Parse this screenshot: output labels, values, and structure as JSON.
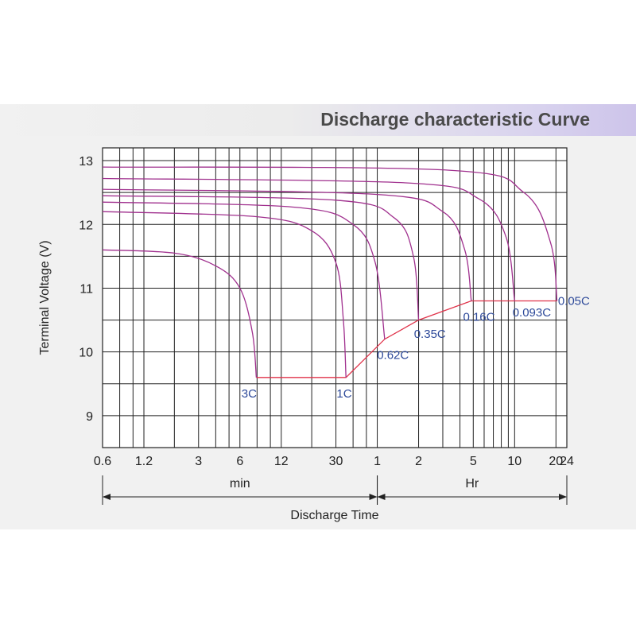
{
  "chart_data": {
    "type": "line",
    "title": "Discharge characteristic Curve",
    "ylabel": "Terminal Voltage  (V)",
    "xlabel": "Discharge Time",
    "x_scale": "log",
    "ylim": [
      8.5,
      13.2
    ],
    "y_ticks": [
      "13",
      "12",
      "11",
      "10",
      "9"
    ],
    "x_ticks": [
      {
        "label": "0.6",
        "minutes": 0.6
      },
      {
        "label": "1.2",
        "minutes": 1.2
      },
      {
        "label": "3",
        "minutes": 3
      },
      {
        "label": "6",
        "minutes": 6
      },
      {
        "label": "12",
        "minutes": 12
      },
      {
        "label": "30",
        "minutes": 30
      },
      {
        "label": "1",
        "minutes": 60
      },
      {
        "label": "2",
        "minutes": 120
      },
      {
        "label": "5",
        "minutes": 300
      },
      {
        "label": "10",
        "minutes": 600
      },
      {
        "label": "20",
        "minutes": 1200
      },
      {
        "label": "24",
        "minutes": 1440
      }
    ],
    "x_units": [
      {
        "label": "min",
        "from_minutes": 0.6,
        "to_minutes": 60
      },
      {
        "label": "Hr",
        "from_minutes": 60,
        "to_minutes": 1440
      }
    ],
    "grid": true,
    "series": [
      {
        "name": "3C",
        "points": [
          [
            0.6,
            11.6
          ],
          [
            2,
            11.55
          ],
          [
            4,
            11.35
          ],
          [
            6,
            11.0
          ],
          [
            7.4,
            10.3
          ],
          [
            7.9,
            9.6
          ]
        ]
      },
      {
        "name": "1C",
        "points": [
          [
            0.6,
            12.2
          ],
          [
            8,
            12.12
          ],
          [
            20,
            11.9
          ],
          [
            30,
            11.4
          ],
          [
            34,
            10.5
          ],
          [
            35.5,
            9.6
          ]
        ]
      },
      {
        "name": "0.62C",
        "points": [
          [
            0.6,
            12.35
          ],
          [
            15,
            12.27
          ],
          [
            40,
            12.0
          ],
          [
            58,
            11.4
          ],
          [
            68,
            10.2
          ]
        ]
      },
      {
        "name": "0.35C",
        "points": [
          [
            0.6,
            12.45
          ],
          [
            30,
            12.38
          ],
          [
            80,
            12.1
          ],
          [
            110,
            11.5
          ],
          [
            120,
            10.5
          ]
        ]
      },
      {
        "name": "0.16C",
        "points": [
          [
            0.6,
            12.55
          ],
          [
            60,
            12.47
          ],
          [
            180,
            12.2
          ],
          [
            260,
            11.6
          ],
          [
            290,
            10.8
          ]
        ]
      },
      {
        "name": "0.093C",
        "points": [
          [
            0.6,
            12.72
          ],
          [
            100,
            12.65
          ],
          [
            330,
            12.4
          ],
          [
            520,
            11.8
          ],
          [
            600,
            10.8
          ]
        ]
      },
      {
        "name": "0.05C",
        "points": [
          [
            0.6,
            12.9
          ],
          [
            200,
            12.85
          ],
          [
            700,
            12.5
          ],
          [
            1100,
            11.7
          ],
          [
            1220,
            10.8
          ]
        ]
      }
    ],
    "cutoff_line": {
      "points": [
        [
          7.9,
          9.6
        ],
        [
          35.5,
          9.6
        ],
        [
          68,
          10.2
        ],
        [
          120,
          10.5
        ],
        [
          290,
          10.8
        ],
        [
          600,
          10.8
        ],
        [
          1220,
          10.8
        ]
      ]
    },
    "annotations": [
      {
        "text": "3C",
        "minutes": 7.0,
        "voltage": 9.35
      },
      {
        "text": "1C",
        "minutes": 34.5,
        "voltage": 9.35
      },
      {
        "text": "0.62C",
        "minutes": 78,
        "voltage": 9.95
      },
      {
        "text": "0.35C",
        "minutes": 145,
        "voltage": 10.28
      },
      {
        "text": "0.16C",
        "minutes": 330,
        "voltage": 10.55
      },
      {
        "text": "0.093C",
        "minutes": 800,
        "voltage": 10.62
      },
      {
        "text": "0.05C",
        "minutes": 1620,
        "voltage": 10.8
      }
    ],
    "colors": {
      "curve": "#a0308e",
      "cutoff": "#e0334a",
      "label": "#2e4a9a",
      "grid": "#222222"
    }
  }
}
